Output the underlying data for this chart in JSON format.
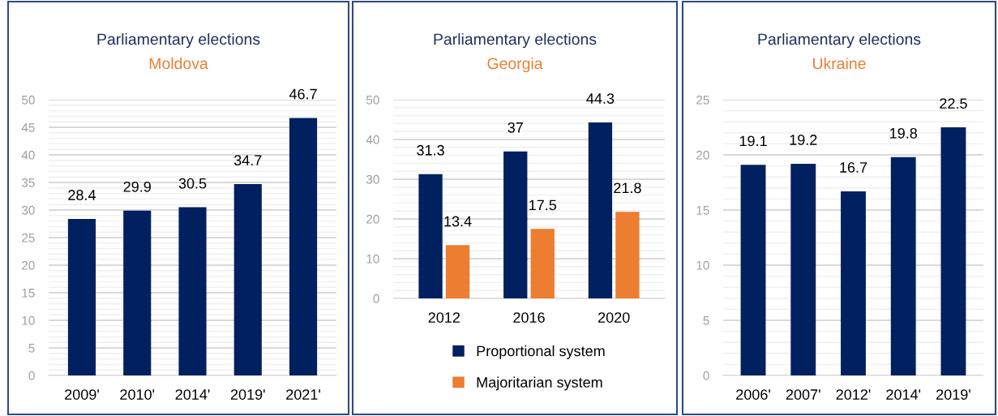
{
  "chart_data": [
    {
      "type": "bar",
      "title": "Parliamentary elections",
      "subtitle": "Moldova",
      "categories": [
        "2009'",
        "2010'",
        "2014'",
        "2019'",
        "2021'"
      ],
      "series": [
        {
          "color": "#002060",
          "values": [
            28.4,
            29.9,
            30.5,
            34.7,
            46.7
          ]
        }
      ],
      "ylim": [
        0,
        50
      ],
      "yticks": [
        0,
        5,
        10,
        15,
        20,
        25,
        30,
        35,
        40,
        45,
        50
      ],
      "grid": "y",
      "data_labels": true,
      "legend": false
    },
    {
      "type": "bar",
      "title": "Parliamentary elections",
      "subtitle": "Georgia",
      "categories": [
        "2012",
        "2016",
        "2020"
      ],
      "series": [
        {
          "name": "Proportional system",
          "color": "#002060",
          "values": [
            31.3,
            37,
            44.3
          ]
        },
        {
          "name": "Majoritarian system",
          "color": "#ed7d31",
          "values": [
            13.4,
            17.5,
            21.8
          ]
        }
      ],
      "ylim": [
        0,
        50
      ],
      "yticks": [
        0,
        10,
        20,
        30,
        40,
        50
      ],
      "grid": "y",
      "data_labels": true,
      "legend": "bottom"
    },
    {
      "type": "bar",
      "title": "Parliamentary elections",
      "subtitle": "Ukraine",
      "categories": [
        "2006'",
        "2007'",
        "2012'",
        "2014'",
        "2019'"
      ],
      "series": [
        {
          "color": "#002060",
          "values": [
            19.1,
            19.2,
            16.7,
            19.8,
            22.5
          ]
        }
      ],
      "ylim": [
        0,
        25
      ],
      "yticks": [
        0,
        5,
        10,
        15,
        20,
        25
      ],
      "grid": "y",
      "data_labels": true,
      "legend": false
    }
  ]
}
